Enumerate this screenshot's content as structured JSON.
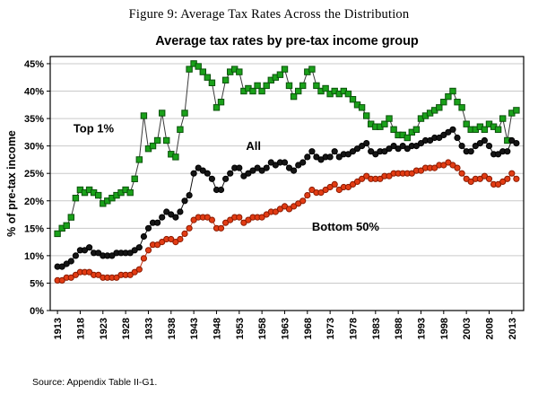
{
  "figure_caption": "Figure 9: Average Tax Rates Across the Distribution",
  "source_note": "Source: Appendix Table II-G1.",
  "chart_data": {
    "type": "line",
    "title": "Average tax rates by pre-tax income group",
    "xlabel": "",
    "ylabel": "% of pre-tax income",
    "ylim": [
      0,
      45
    ],
    "y_tick_step": 5,
    "y_tick_suffix": "%",
    "grid": "horizontal",
    "legend": "inline-annotations",
    "x_ticks": [
      1913,
      1918,
      1923,
      1928,
      1933,
      1938,
      1943,
      1948,
      1953,
      1958,
      1963,
      1968,
      1973,
      1978,
      1983,
      1988,
      1993,
      1998,
      2003,
      2008,
      2013
    ],
    "years": [
      1913,
      1914,
      1915,
      1916,
      1917,
      1918,
      1919,
      1920,
      1921,
      1922,
      1923,
      1924,
      1925,
      1926,
      1927,
      1928,
      1929,
      1930,
      1931,
      1932,
      1933,
      1934,
      1935,
      1936,
      1937,
      1938,
      1939,
      1940,
      1941,
      1942,
      1943,
      1944,
      1945,
      1946,
      1947,
      1948,
      1949,
      1950,
      1951,
      1952,
      1953,
      1954,
      1955,
      1956,
      1957,
      1958,
      1959,
      1960,
      1961,
      1962,
      1963,
      1964,
      1965,
      1966,
      1967,
      1968,
      1969,
      1970,
      1971,
      1972,
      1973,
      1974,
      1975,
      1976,
      1977,
      1978,
      1979,
      1980,
      1981,
      1982,
      1983,
      1984,
      1985,
      1986,
      1987,
      1988,
      1989,
      1990,
      1991,
      1992,
      1993,
      1994,
      1995,
      1996,
      1997,
      1998,
      1999,
      2000,
      2001,
      2002,
      2003,
      2004,
      2005,
      2006,
      2007,
      2008,
      2009,
      2010,
      2011,
      2012,
      2013,
      2014
    ],
    "series": [
      {
        "id": "top-1",
        "name": "Top 1%",
        "marker": "square",
        "color": "#1aa11a",
        "edge_color": "#0a520a",
        "line_color": "#3a3a3a",
        "values": [
          14,
          15,
          15.5,
          17,
          20.5,
          22,
          21.5,
          22,
          21.5,
          21,
          19.5,
          20,
          20.5,
          21,
          21.5,
          22,
          21.5,
          24,
          27.5,
          35.5,
          29.5,
          30,
          31,
          36,
          31,
          28.5,
          28,
          33,
          36,
          44,
          45,
          44.5,
          43.5,
          42.5,
          41.5,
          37,
          38,
          42,
          43.5,
          44,
          43.5,
          40,
          40.5,
          40,
          41,
          40,
          41,
          42,
          42.5,
          43,
          44,
          41,
          39,
          40,
          41,
          43.5,
          44,
          41,
          40,
          40.5,
          39.5,
          40,
          39.5,
          40,
          39.5,
          38.5,
          37.5,
          37,
          35.5,
          34,
          33.5,
          33.5,
          34,
          35,
          33,
          32,
          32,
          31.5,
          32.5,
          33,
          35,
          35.5,
          36,
          36.5,
          37,
          38,
          39,
          40,
          38,
          37,
          34,
          33,
          33,
          33.5,
          33,
          34,
          33.5,
          33,
          35,
          31,
          36,
          36.5
        ]
      },
      {
        "id": "all",
        "name": "All",
        "marker": "circle",
        "color": "#151515",
        "edge_color": "#000000",
        "line_color": "#111111",
        "values": [
          8,
          8,
          8.5,
          9,
          10,
          11,
          11,
          11.5,
          10.5,
          10.5,
          10,
          10,
          10,
          10.5,
          10.5,
          10.5,
          10.5,
          11,
          11.5,
          13.5,
          15,
          16,
          16,
          17,
          18,
          17.5,
          17,
          18,
          20,
          21,
          25,
          26,
          25.5,
          25,
          24,
          22,
          22,
          24,
          25,
          26,
          26,
          24.5,
          25,
          25.5,
          26,
          25.5,
          26,
          27,
          26.5,
          27,
          27,
          26,
          25.5,
          26.5,
          27,
          28,
          29,
          28,
          27.5,
          28,
          28,
          29,
          28,
          28.5,
          28.5,
          29,
          29.5,
          30,
          30.5,
          29,
          28.5,
          29,
          29,
          29.5,
          30,
          29.5,
          30,
          29.5,
          30,
          30,
          30.5,
          31,
          31,
          31.5,
          31.5,
          32,
          32.5,
          33,
          31.5,
          30,
          29,
          29,
          30,
          30.5,
          31,
          30,
          28.5,
          28.5,
          29,
          29,
          31,
          30.5
        ]
      },
      {
        "id": "bottom-50",
        "name": "Bottom 50%",
        "marker": "circle",
        "color": "#e23c14",
        "edge_color": "#8b1a00",
        "line_color": "#c23212",
        "values": [
          5.5,
          5.5,
          6,
          6,
          6.5,
          7,
          7,
          7,
          6.5,
          6.5,
          6,
          6,
          6,
          6,
          6.5,
          6.5,
          6.5,
          7,
          7.5,
          9.5,
          11,
          12,
          12,
          12.5,
          13,
          13,
          12.5,
          13,
          14,
          15,
          16.5,
          17,
          17,
          17,
          16.5,
          15,
          15,
          16,
          16.5,
          17,
          17,
          16,
          16.5,
          17,
          17,
          17,
          17.5,
          18,
          18,
          18.5,
          19,
          18.5,
          19,
          19.5,
          20,
          21,
          22,
          21.5,
          21.5,
          22,
          22.5,
          23,
          22,
          22.5,
          22.5,
          23,
          23.5,
          24,
          24.5,
          24,
          24,
          24,
          24.5,
          24.5,
          25,
          25,
          25,
          25,
          25,
          25.5,
          25.5,
          26,
          26,
          26,
          26.5,
          26.5,
          27,
          26.5,
          26,
          25,
          24,
          23.5,
          24,
          24,
          24.5,
          24,
          23,
          23,
          23.5,
          24,
          25,
          24
        ]
      }
    ],
    "annotations": [
      {
        "text": "Top 1%",
        "x": 1916.5,
        "y": 32.5
      },
      {
        "text": "All",
        "x": 1954.5,
        "y": 29.3
      },
      {
        "text": "Bottom 50%",
        "x": 1969.0,
        "y": 14.6
      }
    ]
  }
}
